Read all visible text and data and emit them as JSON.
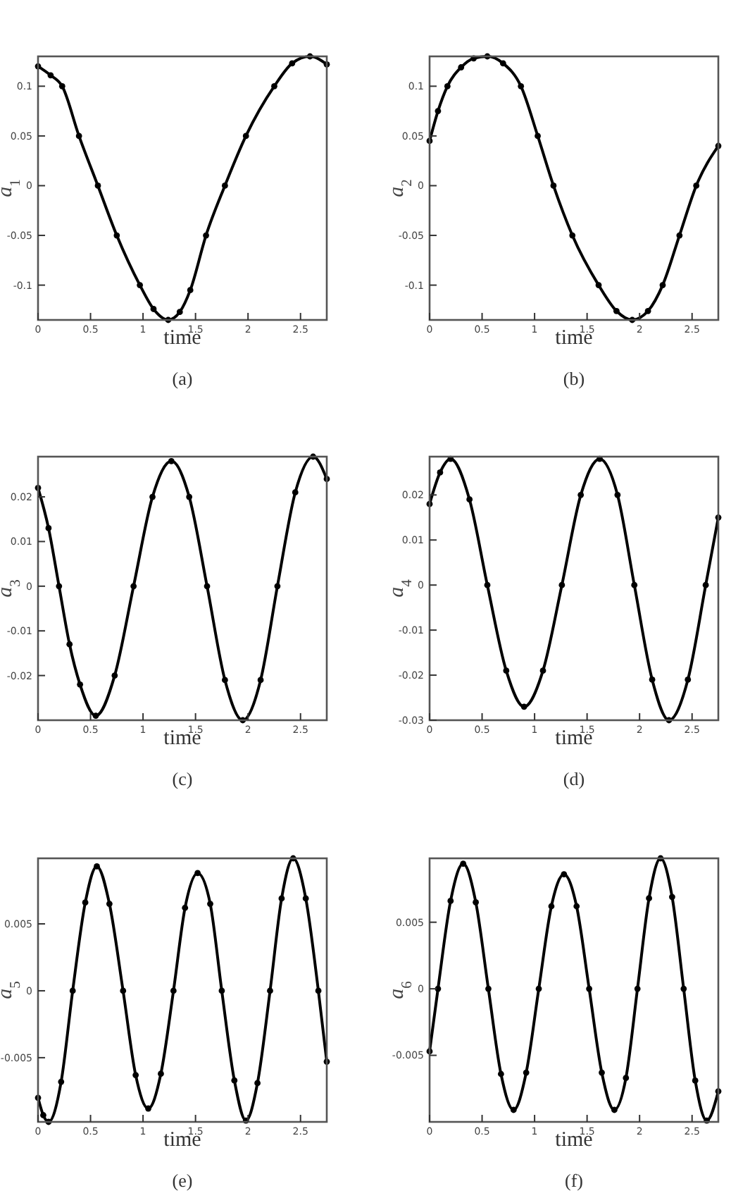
{
  "chart_data": [
    {
      "type": "line",
      "ylabel": "a$_{1}$",
      "xlabel": "time",
      "annotations": [
        "(a)"
      ],
      "marker": "circle",
      "line_style": "solid",
      "xlim": [
        0,
        2.75
      ],
      "xticks": [
        0,
        0.5,
        1,
        1.5,
        2,
        2.5
      ],
      "ylim": [
        -0.135,
        0.13
      ],
      "yticks": [
        -0.1,
        -0.05,
        0,
        0.05,
        0.1
      ],
      "grid": false,
      "series": [
        {
          "color": "#000000",
          "x": [
            0,
            0.12,
            0.23,
            0.39,
            0.57,
            0.75,
            0.97,
            1.1,
            1.24,
            1.35,
            1.45,
            1.6,
            1.78,
            1.98,
            2.25,
            2.42,
            2.59,
            2.75
          ],
          "values": [
            0.12,
            0.111,
            0.1,
            0.05,
            0,
            -0.05,
            -0.1,
            -0.124,
            -0.135,
            -0.127,
            -0.105,
            -0.05,
            0,
            0.05,
            0.1,
            0.123,
            0.13,
            0.122
          ]
        }
      ]
    },
    {
      "type": "line",
      "ylabel": "a$_{2}$",
      "xlabel": "time",
      "annotations": [
        "(b)"
      ],
      "marker": "circle",
      "line_style": "solid",
      "xlim": [
        0,
        2.75
      ],
      "xticks": [
        0,
        0.5,
        1,
        1.5,
        2,
        2.5
      ],
      "ylim": [
        -0.135,
        0.13
      ],
      "yticks": [
        -0.1,
        -0.05,
        0,
        0.05,
        0.1
      ],
      "grid": false,
      "series": [
        {
          "color": "#000000",
          "x": [
            0,
            0.08,
            0.17,
            0.3,
            0.42,
            0.55,
            0.7,
            0.87,
            1.03,
            1.18,
            1.36,
            1.61,
            1.78,
            1.93,
            2.08,
            2.22,
            2.38,
            2.54,
            2.75
          ],
          "values": [
            0.045,
            0.075,
            0.1,
            0.119,
            0.128,
            0.13,
            0.123,
            0.1,
            0.05,
            0,
            -0.05,
            -0.1,
            -0.126,
            -0.135,
            -0.126,
            -0.1,
            -0.05,
            0,
            0.04
          ]
        }
      ]
    },
    {
      "type": "line",
      "ylabel": "a$_{3}$",
      "xlabel": "time",
      "annotations": [
        "(c)"
      ],
      "marker": "circle",
      "line_style": "solid",
      "xlim": [
        0,
        2.75
      ],
      "xticks": [
        0,
        0.5,
        1,
        1.5,
        2,
        2.5
      ],
      "ylim": [
        -0.03,
        0.029
      ],
      "yticks": [
        -0.02,
        -0.01,
        0,
        0.01,
        0.02
      ],
      "grid": false,
      "series": [
        {
          "color": "#000000",
          "x": [
            0,
            0.1,
            0.2,
            0.3,
            0.4,
            0.55,
            0.73,
            0.91,
            1.09,
            1.27,
            1.44,
            1.61,
            1.78,
            1.95,
            2.12,
            2.28,
            2.45,
            2.62,
            2.75
          ],
          "values": [
            0.022,
            0.013,
            0,
            -0.013,
            -0.022,
            -0.029,
            -0.02,
            0,
            0.02,
            0.028,
            0.02,
            0,
            -0.021,
            -0.03,
            -0.021,
            0,
            0.021,
            0.029,
            0.024
          ]
        }
      ]
    },
    {
      "type": "line",
      "ylabel": "a$_{4}$",
      "xlabel": "time",
      "annotations": [
        "(d)"
      ],
      "marker": "circle",
      "line_style": "solid",
      "xlim": [
        0,
        2.75
      ],
      "xticks": [
        0,
        0.5,
        1,
        1.5,
        2,
        2.5
      ],
      "ylim": [
        -0.03,
        0.0285
      ],
      "yticks": [
        -0.03,
        -0.02,
        -0.01,
        0,
        0.01,
        0.02
      ],
      "grid": false,
      "series": [
        {
          "color": "#000000",
          "x": [
            0,
            0.1,
            0.2,
            0.38,
            0.55,
            0.73,
            0.9,
            1.08,
            1.26,
            1.44,
            1.62,
            1.79,
            1.95,
            2.12,
            2.28,
            2.46,
            2.63,
            2.75
          ],
          "values": [
            0.018,
            0.025,
            0.028,
            0.019,
            0,
            -0.019,
            -0.027,
            -0.019,
            0,
            0.02,
            0.028,
            0.02,
            0,
            -0.021,
            -0.03,
            -0.021,
            0,
            0.015
          ]
        }
      ]
    },
    {
      "type": "line",
      "ylabel": "a$_{5}$",
      "xlabel": "time",
      "annotations": [
        "(e)"
      ],
      "marker": "circle",
      "line_style": "solid",
      "xlim": [
        0,
        2.75
      ],
      "xticks": [
        0,
        0.5,
        1,
        1.5,
        2,
        2.5
      ],
      "ylim": [
        -0.0098,
        0.0099
      ],
      "yticks": [
        -0.005,
        0,
        0.005
      ],
      "grid": false,
      "series": [
        {
          "color": "#000000",
          "x": [
            0,
            0.05,
            0.1,
            0.22,
            0.33,
            0.45,
            0.56,
            0.68,
            0.81,
            0.93,
            1.05,
            1.17,
            1.29,
            1.4,
            1.52,
            1.64,
            1.75,
            1.87,
            1.98,
            2.09,
            2.21,
            2.32,
            2.43,
            2.55,
            2.67,
            2.75
          ],
          "values": [
            -0.008,
            -0.0093,
            -0.0098,
            -0.0068,
            0,
            0.0066,
            0.0093,
            0.0065,
            0,
            -0.0063,
            -0.0088,
            -0.0062,
            0,
            0.0062,
            0.0088,
            0.0065,
            0,
            -0.0067,
            -0.0097,
            -0.0069,
            0,
            0.0069,
            0.0099,
            0.0069,
            0,
            -0.0053
          ]
        }
      ]
    },
    {
      "type": "line",
      "ylabel": "a$_{6}$",
      "xlabel": "time",
      "annotations": [
        "(f)"
      ],
      "marker": "circle",
      "line_style": "solid",
      "xlim": [
        0,
        2.75
      ],
      "xticks": [
        0,
        0.5,
        1,
        1.5,
        2,
        2.5
      ],
      "ylim": [
        -0.01,
        0.0098
      ],
      "yticks": [
        -0.005,
        0,
        0.005
      ],
      "grid": false,
      "series": [
        {
          "color": "#000000",
          "x": [
            0,
            0.08,
            0.2,
            0.32,
            0.44,
            0.56,
            0.68,
            0.8,
            0.92,
            1.04,
            1.16,
            1.28,
            1.4,
            1.52,
            1.64,
            1.76,
            1.87,
            1.98,
            2.09,
            2.2,
            2.31,
            2.42,
            2.53,
            2.64,
            2.75
          ],
          "values": [
            -0.0047,
            0,
            0.0066,
            0.0094,
            0.0065,
            0,
            -0.0064,
            -0.0091,
            -0.0063,
            0,
            0.0062,
            0.0086,
            0.0062,
            0,
            -0.0063,
            -0.0091,
            -0.0067,
            0,
            0.0068,
            0.0098,
            0.0069,
            0,
            -0.0069,
            -0.0099,
            -0.0077
          ]
        }
      ]
    }
  ]
}
